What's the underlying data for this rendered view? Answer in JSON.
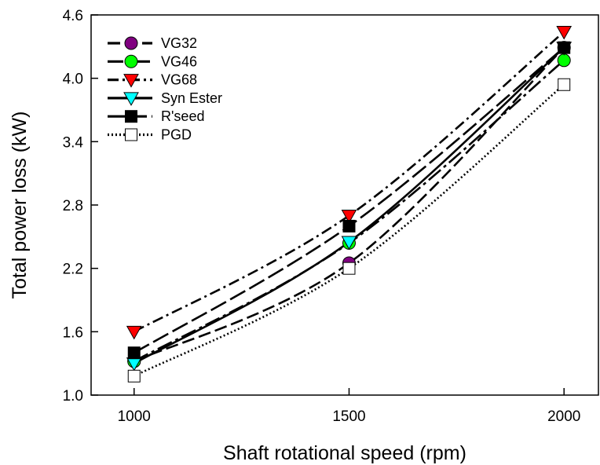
{
  "chart_data": {
    "type": "line",
    "xlabel": "Shaft rotational speed (rpm)",
    "ylabel": "Total power loss (kW)",
    "x": [
      1000,
      1500,
      2000
    ],
    "x_tick_labels": [
      "1000",
      "1500",
      "2000"
    ],
    "xlim": [
      900,
      2080
    ],
    "ylim": [
      1.0,
      4.6
    ],
    "y_ticks": [
      1.0,
      1.6,
      2.2,
      2.8,
      3.4,
      4.0,
      4.6
    ],
    "y_tick_labels": [
      "1.0",
      "1.6",
      "2.2",
      "2.8",
      "3.4",
      "4.0",
      "4.6"
    ],
    "grid": false,
    "legend_position": "top-left",
    "series": [
      {
        "name": "VG32",
        "values": [
          1.32,
          2.25,
          4.29
        ],
        "marker": "circle",
        "marker_color": "#800080",
        "dash": "16 6"
      },
      {
        "name": "VG46",
        "values": [
          1.32,
          2.44,
          4.17
        ],
        "marker": "circle",
        "marker_color": "#00ff00",
        "dash": "20 5 4 5"
      },
      {
        "name": "VG68",
        "values": [
          1.6,
          2.7,
          4.44
        ],
        "marker": "triangle-down",
        "marker_color": "#ff0000",
        "dash": "14 5 3 5"
      },
      {
        "name": "Syn Ester",
        "values": [
          1.3,
          2.45,
          4.29
        ],
        "marker": "triangle-down",
        "marker_color": "#00ffff",
        "dash": ""
      },
      {
        "name": "R'seed",
        "values": [
          1.4,
          2.6,
          4.29
        ],
        "marker": "square",
        "marker_color": "#000000",
        "dash": "22 6"
      },
      {
        "name": "PGD",
        "values": [
          1.18,
          2.2,
          3.94
        ],
        "marker": "square",
        "marker_color": "#ffffff",
        "dash": "2 3"
      }
    ]
  }
}
